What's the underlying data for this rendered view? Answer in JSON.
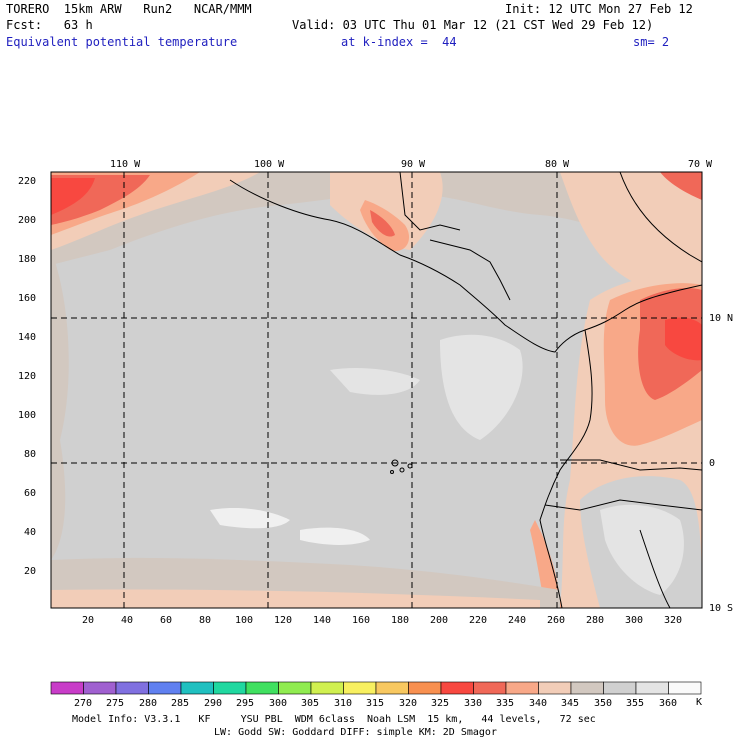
{
  "header": {
    "line1_left": "TORERO  15km ARW   Run2   NCAR/MMM",
    "line1_right": "Init: 12 UTC Mon 27 Feb 12",
    "line2_left": "Fcst:   63 h",
    "line2_right": "Valid: 03 UTC Thu 01 Mar 12 (21 CST Wed 29 Feb 12)",
    "field_name": "Equivalent potential temperature",
    "k_index": "at k-index =  44",
    "smoothing": "sm= 2"
  },
  "map": {
    "lon_labels": [
      "110 W",
      "100 W",
      "90 W",
      "80 W",
      "70 W"
    ],
    "lat_labels": [
      "10 N",
      "0",
      "10 S"
    ],
    "y_ticks": [
      "20",
      "40",
      "60",
      "80",
      "100",
      "120",
      "140",
      "160",
      "180",
      "200",
      "220"
    ],
    "x_ticks": [
      "20",
      "40",
      "60",
      "80",
      "100",
      "120",
      "140",
      "160",
      "180",
      "200",
      "220",
      "240",
      "260",
      "280",
      "300",
      "320"
    ]
  },
  "colorbar": {
    "unit": "K",
    "labels": [
      "270",
      "275",
      "280",
      "285",
      "290",
      "295",
      "300",
      "305",
      "310",
      "315",
      "320",
      "325",
      "330",
      "335",
      "340",
      "345",
      "350",
      "355",
      "360"
    ],
    "colors": [
      "#c83cc8",
      "#a060d0",
      "#8070e0",
      "#6080f0",
      "#20c0c0",
      "#20d8a0",
      "#40e060",
      "#90ec50",
      "#d0f050",
      "#f8f060",
      "#f8c860",
      "#f89050",
      "#f84840",
      "#f06858",
      "#f8a888",
      "#f2cdb8",
      "#d2c8c0",
      "#d0d0d0",
      "#e4e4e4",
      "#fafafa"
    ]
  },
  "footer": {
    "line1": "Model Info: V3.3.1   KF     YSU PBL  WDM 6class  Noah LSM  15 km,   44 levels,   72 sec",
    "line2": "LW: Godd SW: Goddard DIFF: simple KM: 2D Smagor"
  }
}
